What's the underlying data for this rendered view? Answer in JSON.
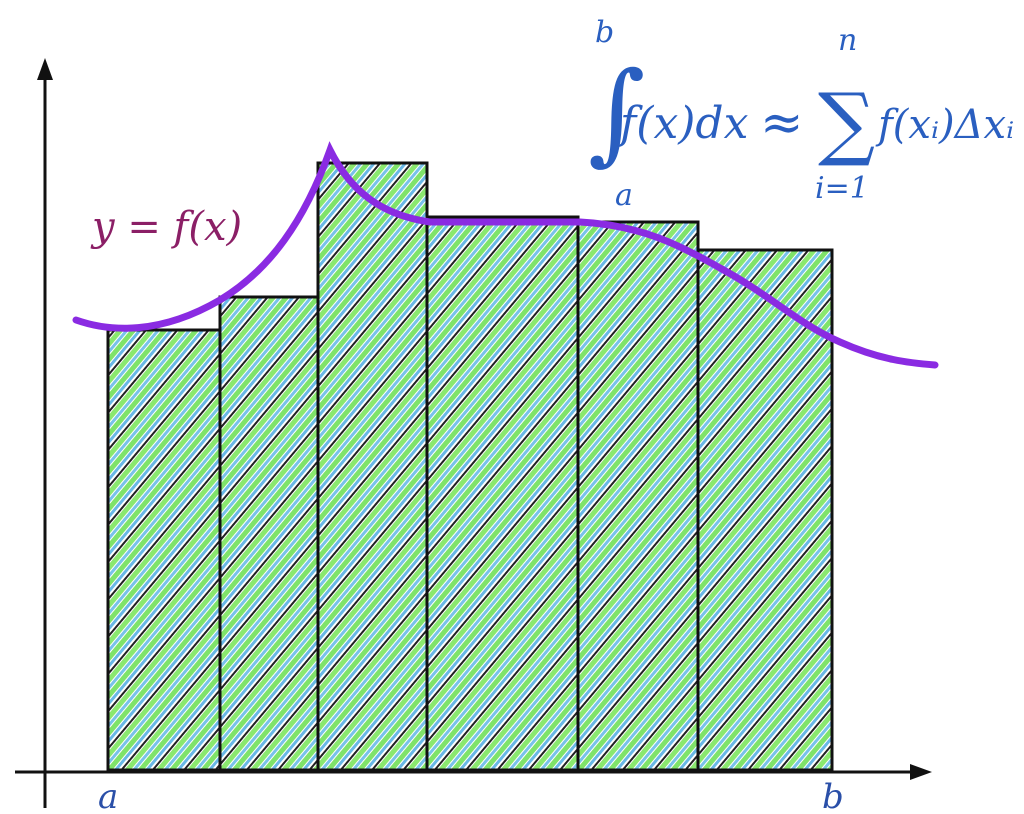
{
  "curve_label": "y = f(x)",
  "x_axis": {
    "start_label": "a",
    "end_label": "b"
  },
  "formula": {
    "integral_upper": "b",
    "integral_lower": "a",
    "integrand": "f(x)dx",
    "approx": "≈",
    "sum_upper": "n",
    "sum_lower": "i=1",
    "summand": "f(xᵢ)Δxᵢ"
  }
}
